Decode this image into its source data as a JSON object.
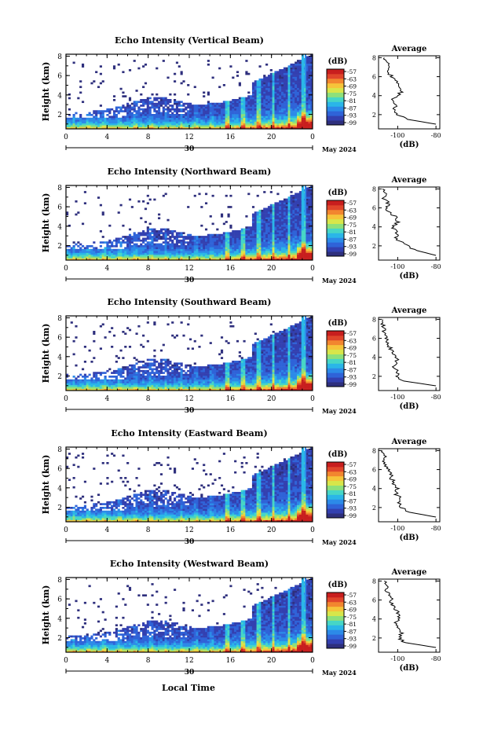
{
  "figure": {
    "x_axis_title": "Local Time",
    "date_label": "May 2024",
    "day_label": "30",
    "height_label": "Height (km)",
    "colorbar_unit": "(dB)",
    "average_title": "Average",
    "average_xlabel": "(dB)"
  },
  "chart_data": [
    {
      "type": "heatmap",
      "title": "Echo Intensity (Vertical Beam)",
      "x_ticks": [
        "0",
        "4",
        "8",
        "12",
        "16",
        "20",
        "0"
      ],
      "y_ticks": [
        "2",
        "4",
        "6",
        "8"
      ],
      "xlim": [
        0,
        24
      ],
      "ylim": [
        0.5,
        8.2
      ],
      "colorbar_ticks": [
        "-57",
        "-63",
        "-69",
        "-75",
        "-81",
        "-87",
        "-93",
        "-99"
      ],
      "clim": [
        -99,
        -57
      ],
      "profile": {
        "title": "Average",
        "x_ticks": [
          "-100",
          "-80"
        ],
        "y_ticks": [
          "2",
          "4",
          "6",
          "8"
        ],
        "xlim": [
          -110,
          -78
        ],
        "heights": [
          1.0,
          1.5,
          2.0,
          2.5,
          3.0,
          3.5,
          4.0,
          4.5,
          5.0,
          5.5,
          6.0,
          6.5,
          7.0,
          7.5,
          8.0
        ],
        "values": [
          -80,
          -95,
          -100,
          -102,
          -101,
          -103,
          -100,
          -98,
          -100,
          -101,
          -103,
          -105,
          -104,
          -106,
          -107
        ]
      }
    },
    {
      "type": "heatmap",
      "title": "Echo Intensity (Northward Beam)",
      "x_ticks": [
        "0",
        "4",
        "8",
        "12",
        "16",
        "20",
        "0"
      ],
      "y_ticks": [
        "2",
        "4",
        "6",
        "8"
      ],
      "xlim": [
        0,
        24
      ],
      "ylim": [
        0.5,
        8.2
      ],
      "colorbar_ticks": [
        "-57",
        "-63",
        "-69",
        "-75",
        "-81",
        "-87",
        "-93",
        "-99"
      ],
      "clim": [
        -99,
        -57
      ],
      "profile": {
        "title": "Average",
        "x_ticks": [
          "-100",
          "-80"
        ],
        "y_ticks": [
          "2",
          "4",
          "6",
          "8"
        ],
        "xlim": [
          -110,
          -78
        ],
        "heights": [
          1.0,
          1.5,
          2.0,
          2.5,
          3.0,
          3.5,
          4.0,
          4.5,
          5.0,
          5.5,
          6.0,
          6.5,
          7.0,
          7.5,
          8.0
        ],
        "values": [
          -80,
          -90,
          -95,
          -99,
          -101,
          -100,
          -103,
          -100,
          -101,
          -104,
          -106,
          -105,
          -107,
          -107,
          -108
        ]
      }
    },
    {
      "type": "heatmap",
      "title": "Echo Intensity (Southward Beam)",
      "x_ticks": [
        "0",
        "4",
        "8",
        "12",
        "16",
        "20",
        "0"
      ],
      "y_ticks": [
        "2",
        "4",
        "6",
        "8"
      ],
      "xlim": [
        0,
        24
      ],
      "ylim": [
        0.5,
        8.2
      ],
      "colorbar_ticks": [
        "-57",
        "-63",
        "-69",
        "-75",
        "-81",
        "-87",
        "-93",
        "-99"
      ],
      "clim": [
        -99,
        -57
      ],
      "profile": {
        "title": "Average",
        "x_ticks": [
          "-100",
          "-80"
        ],
        "y_ticks": [
          "2",
          "4",
          "6",
          "8"
        ],
        "xlim": [
          -110,
          -78
        ],
        "heights": [
          1.0,
          1.5,
          2.0,
          2.5,
          3.0,
          3.5,
          4.0,
          4.5,
          5.0,
          5.5,
          6.0,
          6.5,
          7.0,
          7.5,
          8.0
        ],
        "values": [
          -80,
          -97,
          -101,
          -100,
          -102,
          -100,
          -101,
          -103,
          -104,
          -105,
          -106,
          -107,
          -107,
          -108,
          -108
        ]
      }
    },
    {
      "type": "heatmap",
      "title": "Echo Intensity (Eastward Beam)",
      "x_ticks": [
        "0",
        "4",
        "8",
        "12",
        "16",
        "20",
        "0"
      ],
      "y_ticks": [
        "2",
        "4",
        "6",
        "8"
      ],
      "xlim": [
        0,
        24
      ],
      "ylim": [
        0.5,
        8.2
      ],
      "colorbar_ticks": [
        "-57",
        "-63",
        "-69",
        "-75",
        "-81",
        "-87",
        "-93",
        "-99"
      ],
      "clim": [
        -99,
        -57
      ],
      "profile": {
        "title": "Average",
        "x_ticks": [
          "-100",
          "-80"
        ],
        "y_ticks": [
          "2",
          "4",
          "6",
          "8"
        ],
        "xlim": [
          -110,
          -78
        ],
        "heights": [
          1.0,
          1.5,
          2.0,
          2.5,
          3.0,
          3.5,
          4.0,
          4.5,
          5.0,
          5.5,
          6.0,
          6.5,
          7.0,
          7.5,
          8.0
        ],
        "values": [
          -80,
          -94,
          -98,
          -99,
          -99,
          -101,
          -100,
          -102,
          -103,
          -104,
          -105,
          -106,
          -107,
          -107,
          -108
        ]
      }
    },
    {
      "type": "heatmap",
      "title": "Echo Intensity (Westward Beam)",
      "x_ticks": [
        "0",
        "4",
        "8",
        "12",
        "16",
        "20",
        "0"
      ],
      "y_ticks": [
        "2",
        "4",
        "6",
        "8"
      ],
      "xlim": [
        0,
        24
      ],
      "ylim": [
        0.5,
        8.2
      ],
      "colorbar_ticks": [
        "-57",
        "-63",
        "-69",
        "-75",
        "-81",
        "-87",
        "-93",
        "-99"
      ],
      "clim": [
        -99,
        -57
      ],
      "profile": {
        "title": "Average",
        "x_ticks": [
          "-100",
          "-80"
        ],
        "y_ticks": [
          "2",
          "4",
          "6",
          "8"
        ],
        "xlim": [
          -110,
          -78
        ],
        "heights": [
          1.0,
          1.5,
          2.0,
          2.5,
          3.0,
          3.5,
          4.0,
          4.5,
          5.0,
          5.5,
          6.0,
          6.5,
          7.0,
          7.5,
          8.0
        ],
        "values": [
          -80,
          -96,
          -99,
          -98,
          -100,
          -101,
          -99,
          -100,
          -101,
          -103,
          -103,
          -104,
          -106,
          -106,
          -107
        ]
      }
    }
  ],
  "colors": {
    "colormap": [
      "#2e2f7d",
      "#3340b0",
      "#2f63d8",
      "#2c8ae8",
      "#2ab6e8",
      "#46d6c6",
      "#8ee07a",
      "#d8e64a",
      "#f6c43a",
      "#f2862f",
      "#e0452b",
      "#c81e1e"
    ]
  }
}
